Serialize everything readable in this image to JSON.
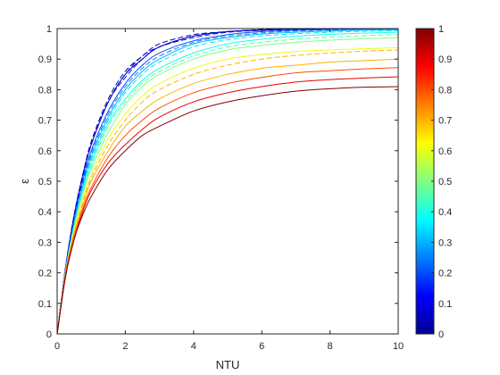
{
  "chart_data": {
    "type": "line",
    "title": "",
    "xlabel": "NTU",
    "ylabel": "ε",
    "xlim": [
      0,
      10
    ],
    "ylim": [
      0,
      1
    ],
    "x_ticks": [
      "0",
      "2",
      "4",
      "6",
      "8",
      "10"
    ],
    "y_ticks": [
      "0",
      "0.1",
      "0.2",
      "0.3",
      "0.4",
      "0.5",
      "0.6",
      "0.7",
      "0.8",
      "0.9",
      "1"
    ],
    "grid": false,
    "colormap": "jet",
    "colorbar": {
      "range": [
        0,
        1
      ],
      "ticks": [
        "0",
        "0.1",
        "0.2",
        "0.3",
        "0.4",
        "0.5",
        "0.6",
        "0.7",
        "0.8",
        "0.9",
        "1"
      ]
    },
    "x": [
      0,
      0.25,
      0.5,
      0.75,
      1,
      1.5,
      2,
      2.5,
      3,
      4,
      5,
      6,
      7,
      8,
      9,
      10
    ],
    "series": [
      {
        "c": 0.05,
        "style": "dashed",
        "values": [
          0,
          0.22,
          0.39,
          0.52,
          0.63,
          0.77,
          0.86,
          0.91,
          0.95,
          0.98,
          0.99,
          0.997,
          0.999,
          1.0,
          1.0,
          1.0
        ]
      },
      {
        "c": 0.1,
        "style": "dashed",
        "values": [
          0,
          0.22,
          0.39,
          0.52,
          0.62,
          0.76,
          0.85,
          0.91,
          0.94,
          0.975,
          0.99,
          0.996,
          0.998,
          0.999,
          1.0,
          1.0
        ]
      },
      {
        "c": 0.15,
        "style": "dashed",
        "values": [
          0,
          0.22,
          0.38,
          0.51,
          0.62,
          0.76,
          0.84,
          0.9,
          0.94,
          0.97,
          0.988,
          0.994,
          0.997,
          0.999,
          1.0,
          1.0
        ]
      },
      {
        "c": 0.05,
        "style": "solid",
        "values": [
          0,
          0.22,
          0.39,
          0.52,
          0.62,
          0.76,
          0.85,
          0.9,
          0.94,
          0.975,
          0.99,
          0.995,
          0.998,
          0.999,
          1.0,
          1.0
        ]
      },
      {
        "c": 0.2,
        "style": "solid",
        "values": [
          0,
          0.21,
          0.37,
          0.5,
          0.6,
          0.73,
          0.82,
          0.88,
          0.92,
          0.96,
          0.98,
          0.99,
          0.994,
          0.997,
          0.998,
          0.999
        ]
      },
      {
        "c": 0.25,
        "style": "dashed",
        "values": [
          0,
          0.21,
          0.37,
          0.49,
          0.59,
          0.72,
          0.81,
          0.87,
          0.91,
          0.955,
          0.975,
          0.986,
          0.992,
          0.995,
          0.997,
          0.998
        ]
      },
      {
        "c": 0.3,
        "style": "solid",
        "values": [
          0,
          0.21,
          0.36,
          0.48,
          0.58,
          0.71,
          0.8,
          0.86,
          0.9,
          0.95,
          0.97,
          0.982,
          0.988,
          0.992,
          0.995,
          0.996
        ]
      },
      {
        "c": 0.35,
        "style": "dashed",
        "values": [
          0,
          0.21,
          0.36,
          0.48,
          0.57,
          0.7,
          0.79,
          0.85,
          0.89,
          0.94,
          0.963,
          0.976,
          0.983,
          0.988,
          0.991,
          0.993
        ]
      },
      {
        "c": 0.4,
        "style": "solid",
        "values": [
          0,
          0.21,
          0.35,
          0.47,
          0.56,
          0.69,
          0.77,
          0.83,
          0.87,
          0.92,
          0.95,
          0.965,
          0.975,
          0.981,
          0.985,
          0.988
        ]
      },
      {
        "c": 0.45,
        "style": "dashed",
        "values": [
          0,
          0.21,
          0.35,
          0.46,
          0.55,
          0.68,
          0.76,
          0.82,
          0.86,
          0.91,
          0.94,
          0.955,
          0.965,
          0.972,
          0.977,
          0.98
        ]
      },
      {
        "c": 0.5,
        "style": "solid",
        "values": [
          0,
          0.2,
          0.35,
          0.46,
          0.54,
          0.66,
          0.75,
          0.81,
          0.85,
          0.9,
          0.93,
          0.945,
          0.955,
          0.962,
          0.967,
          0.97
        ]
      },
      {
        "c": 0.6,
        "style": "solid",
        "values": [
          0,
          0.2,
          0.34,
          0.44,
          0.52,
          0.64,
          0.72,
          0.78,
          0.82,
          0.87,
          0.9,
          0.915,
          0.925,
          0.93,
          0.934,
          0.937
        ]
      },
      {
        "c": 0.7,
        "style": "dashed",
        "values": [
          0,
          0.2,
          0.33,
          0.43,
          0.51,
          0.62,
          0.7,
          0.76,
          0.8,
          0.85,
          0.88,
          0.9,
          0.912,
          0.92,
          0.926,
          0.93
        ]
      },
      {
        "c": 0.7,
        "style": "solid",
        "values": [
          0,
          0.2,
          0.33,
          0.42,
          0.5,
          0.6,
          0.68,
          0.73,
          0.77,
          0.82,
          0.85,
          0.87,
          0.88,
          0.89,
          0.895,
          0.9
        ]
      },
      {
        "c": 0.8,
        "style": "solid",
        "values": [
          0,
          0.2,
          0.32,
          0.41,
          0.48,
          0.58,
          0.65,
          0.7,
          0.74,
          0.79,
          0.82,
          0.84,
          0.855,
          0.862,
          0.868,
          0.872
        ]
      },
      {
        "c": 0.9,
        "style": "solid",
        "values": [
          0,
          0.19,
          0.31,
          0.4,
          0.47,
          0.56,
          0.62,
          0.67,
          0.71,
          0.76,
          0.79,
          0.81,
          0.825,
          0.833,
          0.838,
          0.842
        ]
      },
      {
        "c": 1.0,
        "style": "solid",
        "values": [
          0,
          0.19,
          0.31,
          0.39,
          0.45,
          0.54,
          0.6,
          0.65,
          0.68,
          0.73,
          0.76,
          0.78,
          0.795,
          0.803,
          0.808,
          0.81
        ]
      }
    ]
  },
  "colors": {
    "axis": "#262626",
    "jet": [
      "#00008f",
      "#0000ff",
      "#0080ff",
      "#00ffff",
      "#80ff80",
      "#ffff00",
      "#ff8000",
      "#ff0000",
      "#800000"
    ]
  }
}
